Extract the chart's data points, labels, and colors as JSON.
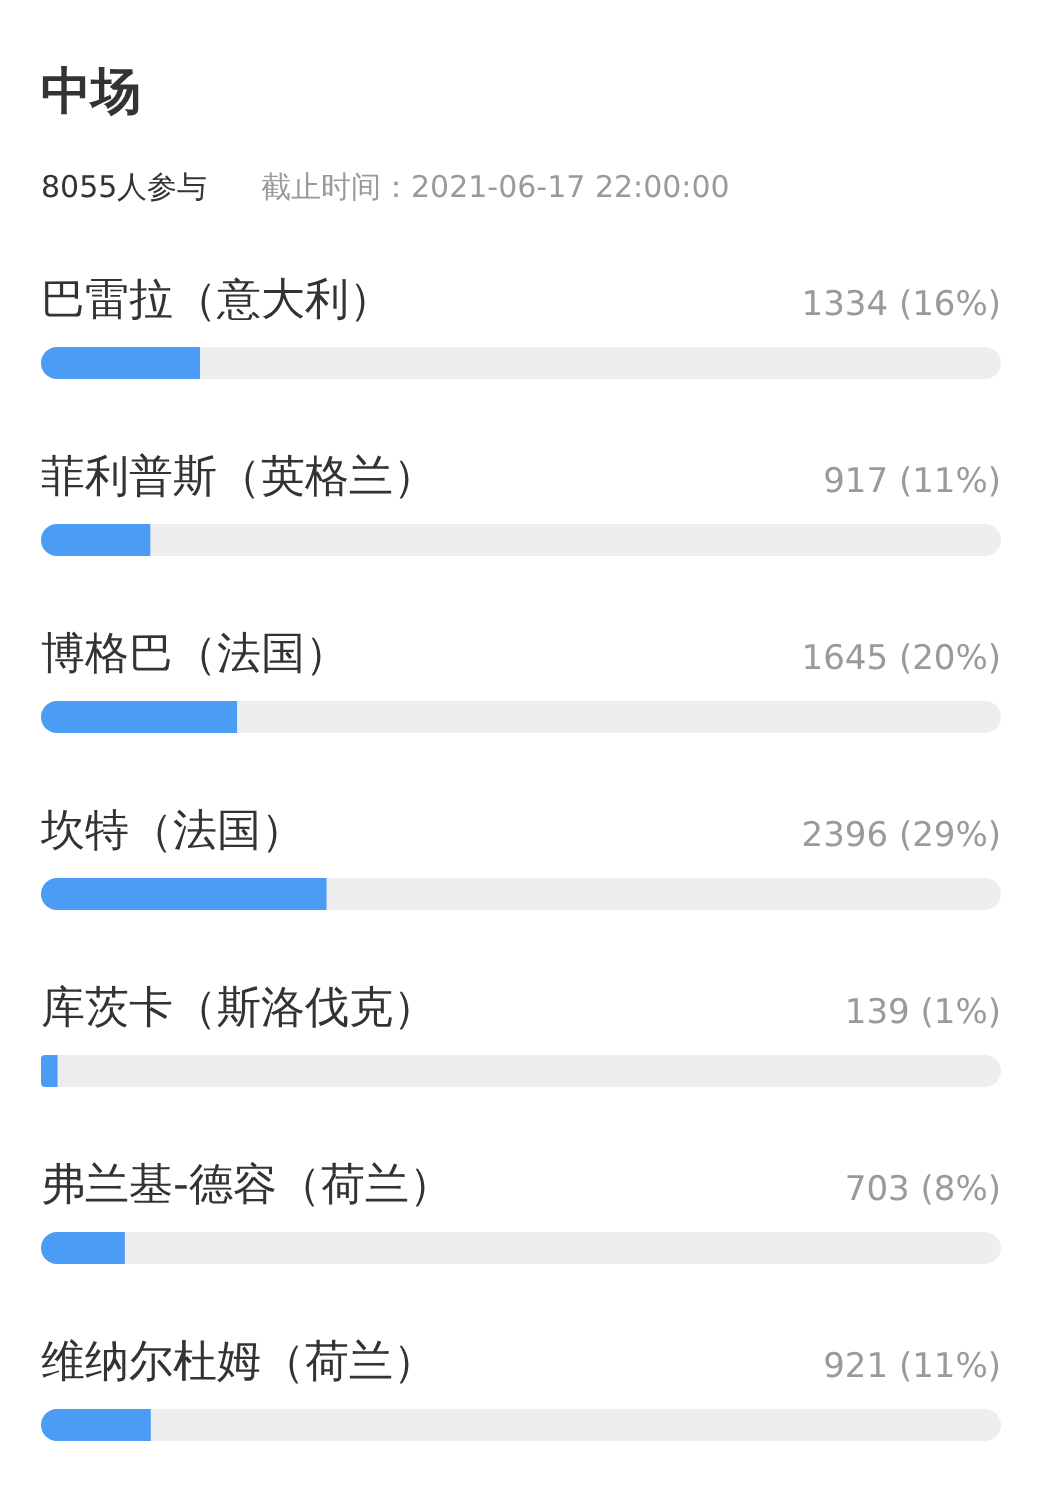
{
  "chart_data": {
    "type": "bar",
    "orientation": "horizontal",
    "title": "中场",
    "subtitle": "8055人参与",
    "annotations": [
      "截止时间：2021-06-17 22:00:00"
    ],
    "categories": [
      "巴雷拉（意大利）",
      "菲利普斯（英格兰）",
      "博格巴（法国）",
      "坎特（法国）",
      "库茨卡（斯洛伐克）",
      "弗兰基-德容（荷兰）",
      "维纳尔杜姆（荷兰）"
    ],
    "values": [
      1334,
      917,
      1645,
      2396,
      139,
      703,
      921
    ],
    "value_labels": [
      "1334 (16%)",
      "917 (11%)",
      "1645 (20%)",
      "2396 (29%)",
      "139 (1%)",
      "703 (8%)",
      "921 (11%)"
    ],
    "color": "#4a9cf5",
    "xlim": [
      0,
      8055
    ],
    "tick_labels": false
  }
}
